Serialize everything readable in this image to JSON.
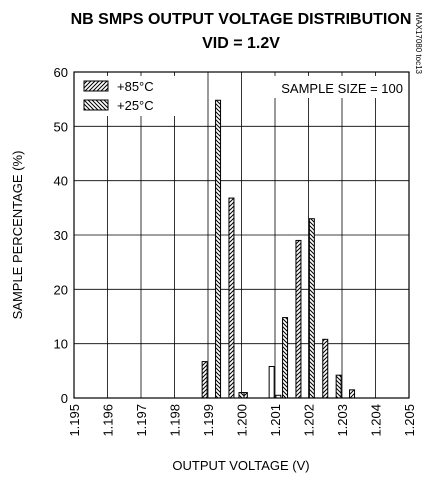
{
  "title_line1": "NB SMPS OUTPUT VOLTAGE DISTRIBUTION",
  "title_line2": "VID = 1.2V",
  "sample_size_label": "SAMPLE SIZE = 100",
  "side_code": "MAX17080 toc13",
  "chart_data": {
    "type": "bar",
    "title": "NB SMPS OUTPUT VOLTAGE DISTRIBUTION VID = 1.2V",
    "xlabel": "OUTPUT VOLTAGE (V)",
    "ylabel": "SAMPLE PERCENTAGE (%)",
    "ylim": [
      0,
      60
    ],
    "yticks": [
      "0",
      "10",
      "20",
      "30",
      "40",
      "50",
      "60"
    ],
    "xticks": [
      "1.195",
      "1.196",
      "1.197",
      "1.198",
      "1.199",
      "1.200",
      "1.201",
      "1.202",
      "1.203",
      "1.204",
      "1.205"
    ],
    "xlim": [
      1.195,
      1.205
    ],
    "grid": true,
    "legend_position": "top-left",
    "series": [
      {
        "name": "+85°C",
        "pattern": "hatch-forward",
        "points": [
          {
            "x": 1.1989,
            "y": 6.7
          },
          {
            "x": 1.1997,
            "y": 36.8
          },
          {
            "x": 1.2001,
            "y": 1.0
          },
          {
            "x": 1.2017,
            "y": 29.0
          },
          {
            "x": 1.2025,
            "y": 10.8
          },
          {
            "x": 1.2033,
            "y": 1.5
          }
        ]
      },
      {
        "name": "+25°C",
        "pattern": "hatch-back",
        "points": [
          {
            "x": 1.1993,
            "y": 54.8
          },
          {
            "x": 1.2,
            "y": 1.0
          },
          {
            "x": 1.2013,
            "y": 14.8
          },
          {
            "x": 1.2021,
            "y": 33.0
          },
          {
            "x": 1.2029,
            "y": 4.2
          }
        ]
      },
      {
        "name": "",
        "pattern": "open",
        "points": [
          {
            "x": 1.2009,
            "y": 5.8
          },
          {
            "x": 1.2011,
            "y": 0.5
          }
        ]
      }
    ]
  }
}
